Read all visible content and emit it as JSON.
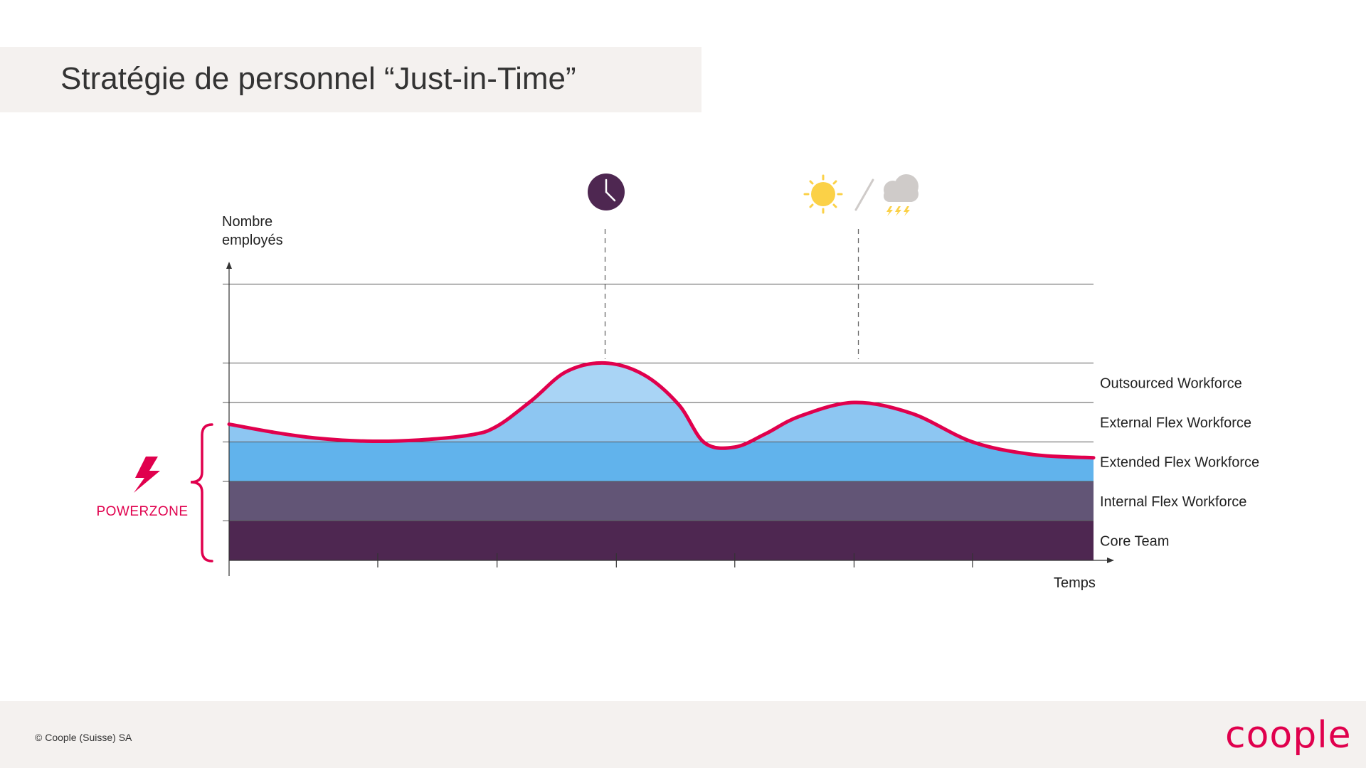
{
  "header": {
    "title": "Stratégie de personnel “Just-in-Time”"
  },
  "footer": {
    "copyright": "© Coople (Suisse) SA",
    "logo_text": "coople"
  },
  "powerzone": {
    "label": "POWERZONE",
    "icon": "lightning-bolt-icon"
  },
  "events": [
    {
      "name": "time",
      "icon": "clock-icon"
    },
    {
      "name": "weather",
      "icon": "sun-storm-icon"
    }
  ],
  "colors": {
    "core_team": "#4e2751",
    "internal_flex": "#625576",
    "extended_flex": "#61b3ec",
    "external_flex": "#8dc6f2",
    "outsourced": "#a9d4f5",
    "demand_line": "#e0004d",
    "powerzone": "#e0004d",
    "clock": "#4e2751",
    "sun": "#fbd147",
    "cloud": "#cfcbc9"
  },
  "chart_data": {
    "type": "area",
    "xlabel": "Temps",
    "ylabel": "Nombre employés",
    "xlim": [
      0,
      100
    ],
    "ylim": [
      0,
      7
    ],
    "grid": true,
    "tiers": [
      {
        "name": "Core Team",
        "from": 0,
        "to": 1
      },
      {
        "name": "Internal Flex Workforce",
        "from": 1,
        "to": 2
      },
      {
        "name": "Extended Flex Workforce",
        "from": 2,
        "to": 3
      },
      {
        "name": "External Flex Workforce",
        "from": 3,
        "to": 4
      },
      {
        "name": "Outsourced Workforce",
        "from": 4,
        "to": 5
      }
    ],
    "gridlines_y": [
      1,
      2,
      3,
      4,
      5,
      7
    ],
    "x_ticks": [
      17.2,
      31,
      44.8,
      58.5,
      72.3,
      86
    ],
    "demand": {
      "x": [
        0,
        5,
        10,
        16,
        22,
        28,
        31,
        35,
        39,
        43.5,
        48,
        52,
        55,
        58.5,
        62,
        66,
        72.3,
        79,
        86,
        93,
        100
      ],
      "y": [
        3.45,
        3.25,
        3.1,
        3.02,
        3.05,
        3.18,
        3.4,
        4.05,
        4.78,
        5.0,
        4.7,
        3.95,
        2.98,
        2.87,
        3.2,
        3.65,
        4.0,
        3.72,
        3.0,
        2.68,
        2.6
      ]
    },
    "event_markers": [
      {
        "x": 43.5,
        "icon": "clock-icon"
      },
      {
        "x": 72.8,
        "icon": "sun-storm-icon"
      }
    ]
  }
}
